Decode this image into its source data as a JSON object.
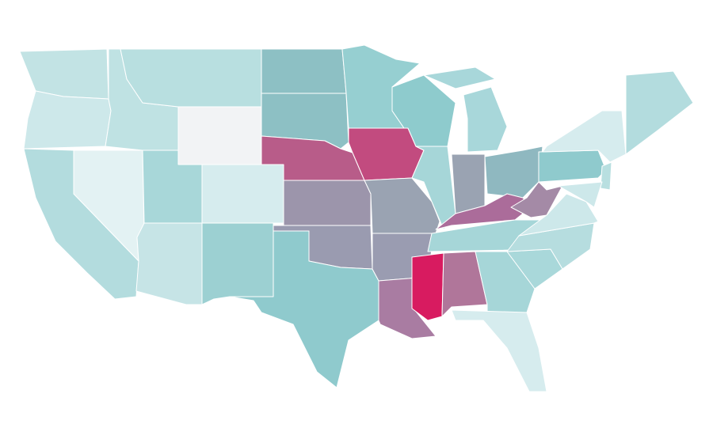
{
  "map": {
    "regions": [
      {
        "color": "#c2e3e4"
      },
      {
        "color": "#cde8ea"
      },
      {
        "color": "#b3dcde"
      },
      {
        "color": "#e3f2f3"
      },
      {
        "color": "#bfe2e3"
      },
      {
        "color": "#b8dfe0"
      },
      {
        "color": "#f2f3f5"
      },
      {
        "color": "#a8d7d9"
      },
      {
        "color": "#d6ecee"
      },
      {
        "color": "#c6e4e6"
      },
      {
        "color": "#9cd0d2"
      },
      {
        "color": "#8dc0c4"
      },
      {
        "color": "#8dc0c4"
      },
      {
        "color": "#b85c89"
      },
      {
        "color": "#9c95ab"
      },
      {
        "color": "#9a9bb0"
      },
      {
        "color": "#8fcacd"
      },
      {
        "color": "#96cfd1"
      },
      {
        "color": "#c24b7f"
      },
      {
        "color": "#9aa3b2"
      },
      {
        "color": "#9a9cb1"
      },
      {
        "color": "#a97ca2"
      },
      {
        "color": "#8ecbcd"
      },
      {
        "color": "#a6d6d8"
      },
      {
        "color": "#9aa3b2"
      },
      {
        "color": "#a8d7da"
      },
      {
        "color": "#a8d7da"
      },
      {
        "color": "#8fb8c0"
      },
      {
        "color": "#ab6c9a"
      },
      {
        "color": "#a6d6d8"
      },
      {
        "color": "#d81b60"
      },
      {
        "color": "#b0769a"
      },
      {
        "color": "#a6d6d8"
      },
      {
        "color": "#d6ecee"
      },
      {
        "color": "#a9d8da"
      },
      {
        "color": "#b6dddf"
      },
      {
        "color": "#cde8ea"
      },
      {
        "color": "#a48aa6"
      },
      {
        "color": "#8fcacd"
      },
      {
        "color": "#d6ecee"
      },
      {
        "color": "#b3dcde"
      },
      {
        "color": "#b8dfe0"
      },
      {
        "color": "#cde8ea"
      }
    ]
  }
}
